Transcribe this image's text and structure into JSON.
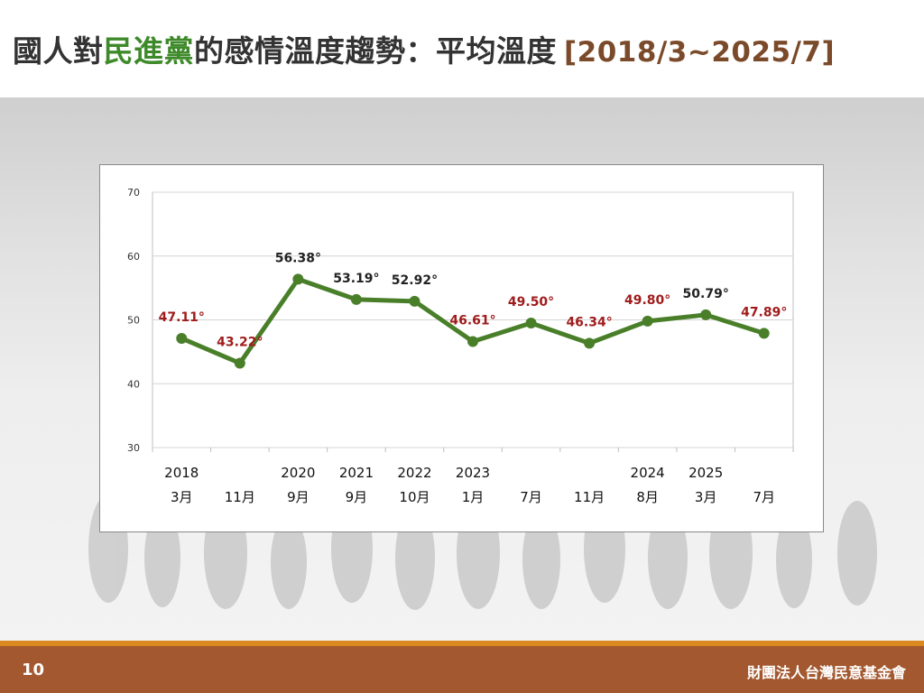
{
  "slide": {
    "title_part1": "國人對",
    "title_party": "民進黨",
    "title_part2": "的感情溫度趨勢：平均溫度",
    "title_range": "[2018/3~2025/7]",
    "page_number": "10",
    "organization": "財團法人台灣民意基金會"
  },
  "colors": {
    "line": "#4a7f2a",
    "label_red": "#a01c1c",
    "label_black": "#222222",
    "title_green": "#3e8a2a",
    "title_range": "#7a4a2a",
    "footer": "#a3582f",
    "footer_stripe": "#d9891f"
  },
  "chart_data": {
    "type": "line",
    "ylim": [
      30,
      70
    ],
    "yticks": [
      30,
      40,
      50,
      60,
      70
    ],
    "grid": true,
    "points": [
      {
        "year": "2018",
        "month": "3月",
        "value": 47.11,
        "label": "47.11°",
        "label_color": "red"
      },
      {
        "year": "",
        "month": "11月",
        "value": 43.22,
        "label": "43.22°",
        "label_color": "red"
      },
      {
        "year": "2020",
        "month": "9月",
        "value": 56.38,
        "label": "56.38°",
        "label_color": "black"
      },
      {
        "year": "2021",
        "month": "9月",
        "value": 53.19,
        "label": "53.19°",
        "label_color": "black"
      },
      {
        "year": "2022",
        "month": "10月",
        "value": 52.92,
        "label": "52.92°",
        "label_color": "black"
      },
      {
        "year": "2023",
        "month": "1月",
        "value": 46.61,
        "label": "46.61°",
        "label_color": "red"
      },
      {
        "year": "",
        "month": "7月",
        "value": 49.5,
        "label": "49.50°",
        "label_color": "red"
      },
      {
        "year": "",
        "month": "11月",
        "value": 46.34,
        "label": "46.34°",
        "label_color": "red"
      },
      {
        "year": "2024",
        "month": "8月",
        "value": 49.8,
        "label": "49.80°",
        "label_color": "red"
      },
      {
        "year": "2025",
        "month": "3月",
        "value": 50.79,
        "label": "50.79°",
        "label_color": "black"
      },
      {
        "year": "",
        "month": "7月",
        "value": 47.89,
        "label": "47.89°",
        "label_color": "red"
      }
    ]
  }
}
